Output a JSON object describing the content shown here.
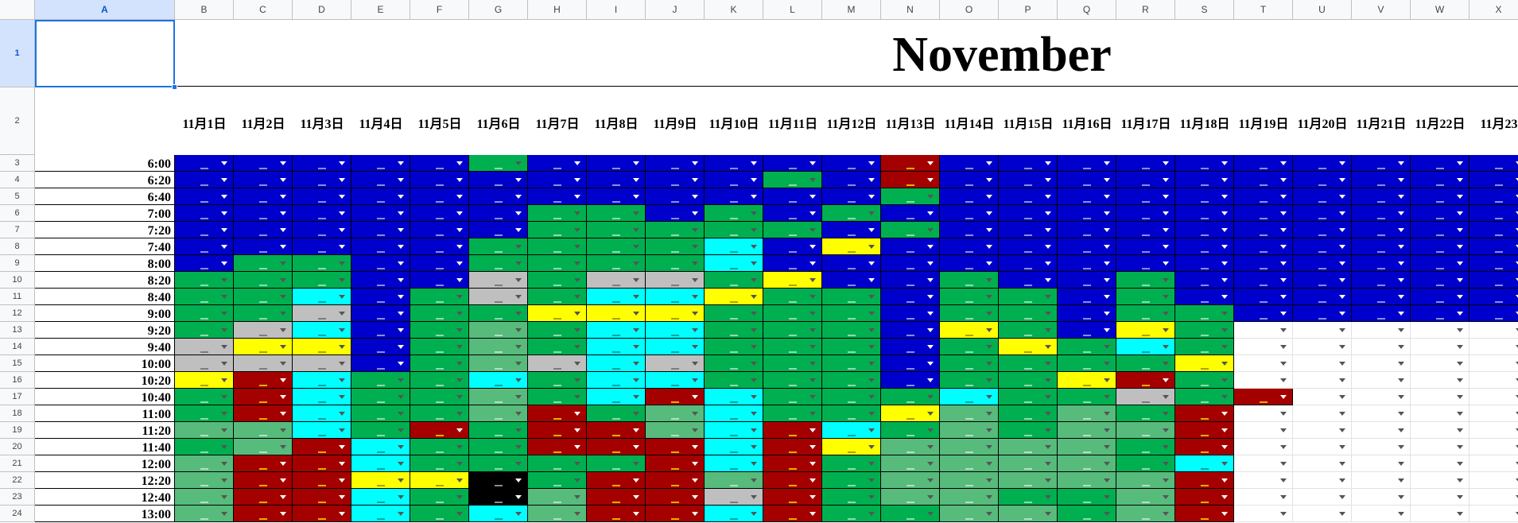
{
  "sheet": {
    "title": "November",
    "selected_cell": "A1",
    "columns": [
      "A",
      "B",
      "C",
      "D",
      "E",
      "F",
      "G",
      "H",
      "I",
      "J",
      "K",
      "L",
      "M",
      "N",
      "O",
      "P",
      "Q",
      "R",
      "S",
      "T",
      "U",
      "V",
      "W",
      "X"
    ],
    "rows": [
      "1",
      "2",
      "3",
      "4",
      "5",
      "6",
      "7",
      "8",
      "9",
      "10",
      "11",
      "12",
      "13",
      "14",
      "15",
      "16",
      "17",
      "18",
      "19",
      "20",
      "21",
      "22",
      "23",
      "24"
    ],
    "dates": [
      "11月1日",
      "11月2日",
      "11月3日",
      "11月4日",
      "11月5日",
      "11月6日",
      "11月7日",
      "11月8日",
      "11月9日",
      "11月10日",
      "11月11日",
      "11月12日",
      "11月13日",
      "11月14日",
      "11月15日",
      "11月16日",
      "11月17日",
      "11月18日",
      "11月19日",
      "11月20日",
      "11月21日",
      "11月22日",
      "11月23"
    ],
    "times": [
      "6:00",
      "6:20",
      "6:40",
      "7:00",
      "7:20",
      "7:40",
      "8:00",
      "8:20",
      "8:40",
      "9:00",
      "9:20",
      "9:40",
      "10:00",
      "10:20",
      "10:40",
      "11:00",
      "11:20",
      "11:40",
      "12:00",
      "12:20",
      "12:40",
      "13:00"
    ]
  },
  "colors": {
    "blue": "#0000cc",
    "green": "#00b050",
    "lightgreen": "#57bb7c",
    "cyan": "#00ffff",
    "yellow": "#ffff00",
    "gray": "#bfbfbf",
    "red": "#a50000",
    "black": "#000000",
    "white": "#ffffff"
  },
  "grid": [
    "BBBBBGBBBBBBRBBBBBBBBBB",
    "BBBBBBBBBBGBRBBBBBBBBBB",
    "BBBBBBBBBBBBGBBBBBBBBBB",
    "BBBBBBGGBGBGBBBBBBBBBBB",
    "BBBBBBGGGGGBGBBBBBBBBBB",
    "BBBBBGGGGCBYBBBBBBBBBBB",
    "BGGBBGGGGCBBBBBBBBBBBBB",
    "GGGBBAGAAGYBBGBBGBBBBBB",
    "GGCBGAGCCYGGBGGBGBBBBBB",
    "GGABGGYYYGGGBGGBGGBBBBB",
    "GACBGLGCCGGGBYGBYGWWWWW",
    "AYYBGLGCCGGGBGYGCGWWWWW",
    "AAABGLACAGGGBGGGGYWWWWW",
    "YRCGGCGCCGGGBGGYRGWWWWW",
    "GRCGGLGCRCGGGCGGAGRWWWWW",
    "GRCGGLRGLCGGYLGLGRWWWWW",
    "LLCGRGRRLCRCGLGLLRWWWWW",
    "GLRCGGRRRCRYLLLLGRWWWWW",
    "LRRCGGGGRCRGLLLLGCWWWWW",
    "LRRYYKGRRLRGLLLLLRWWWWW",
    "LRRCGKLRRARGLLGGLRWWWWW",
    "LRRCGCLRRCRGGLLGLRWWWWW"
  ]
}
